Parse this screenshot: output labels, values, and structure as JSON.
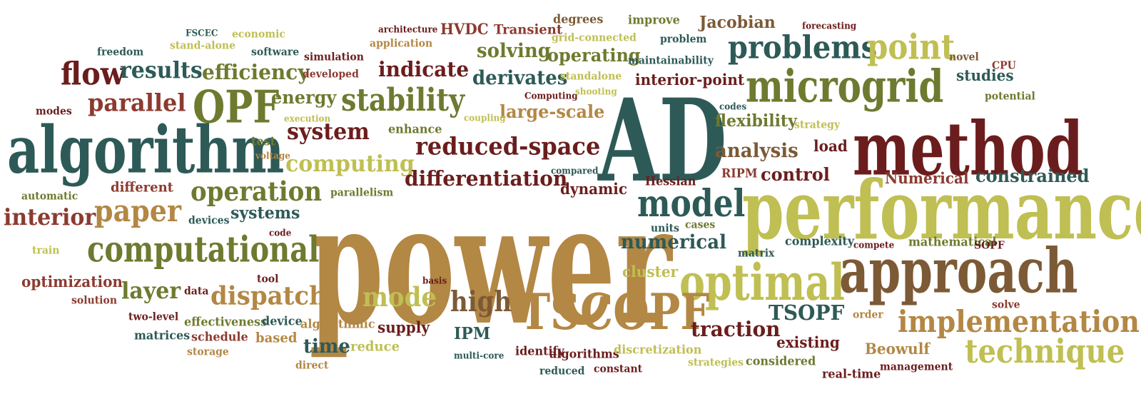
{
  "palette": [
    "#2d5a57",
    "#6b1d1d",
    "#6e7a2f",
    "#b38744",
    "#bfbf53",
    "#7c5a36",
    "#8c3a30"
  ],
  "words": [
    {
      "text": "power",
      "color": "#b38744"
    },
    {
      "text": "performance",
      "color": "#bfbf53"
    },
    {
      "text": "AD",
      "color": "#2d5a57"
    },
    {
      "text": "method",
      "color": "#6b1d1d"
    },
    {
      "text": "algorithm",
      "color": "#2d5a57"
    },
    {
      "text": "approach",
      "color": "#7c5a36"
    },
    {
      "text": "optimal",
      "color": "#bfbf53"
    },
    {
      "text": "TSCOPF",
      "color": "#b38744"
    },
    {
      "text": "microgrid",
      "color": "#6e7a2f"
    },
    {
      "text": "computational",
      "color": "#6e7a2f"
    },
    {
      "text": "technique",
      "color": "#bfbf53"
    },
    {
      "text": "implementation",
      "color": "#b38744"
    },
    {
      "text": "OPF",
      "color": "#6e7a2f"
    },
    {
      "text": "problems",
      "color": "#2d5a57"
    },
    {
      "text": "point",
      "color": "#bfbf53"
    },
    {
      "text": "model",
      "color": "#2d5a57"
    },
    {
      "text": "stability",
      "color": "#6e7a2f"
    },
    {
      "text": "reduced-space",
      "color": "#6b1d1d"
    },
    {
      "text": "flow",
      "color": "#6b1d1d"
    },
    {
      "text": "paper",
      "color": "#b38744"
    },
    {
      "text": "operation",
      "color": "#6e7a2f"
    },
    {
      "text": "high",
      "color": "#7c5a36"
    },
    {
      "text": "mode",
      "color": "#bfbf53"
    },
    {
      "text": "dispatch",
      "color": "#b38744"
    },
    {
      "text": "parallel",
      "color": "#8c3a30"
    },
    {
      "text": "results",
      "color": "#2d5a57"
    },
    {
      "text": "system",
      "color": "#6b1d1d"
    },
    {
      "text": "computing",
      "color": "#bfbf53"
    },
    {
      "text": "differentiation",
      "color": "#6b1d1d"
    },
    {
      "text": "numerical",
      "color": "#2d5a57"
    },
    {
      "text": "efficiency",
      "color": "#6e7a2f"
    },
    {
      "text": "indicate",
      "color": "#6b1d1d"
    },
    {
      "text": "analysis",
      "color": "#7c5a36"
    },
    {
      "text": "large-scale",
      "color": "#b38744"
    },
    {
      "text": "solving",
      "color": "#6e7a2f"
    },
    {
      "text": "derivates",
      "color": "#2d5a57"
    },
    {
      "text": "interior",
      "color": "#8c3a30"
    },
    {
      "text": "layer",
      "color": "#6e7a2f"
    },
    {
      "text": "TSOPF",
      "color": "#2d5a57"
    },
    {
      "text": "traction",
      "color": "#6b1d1d"
    },
    {
      "text": "energy",
      "color": "#6e7a2f"
    },
    {
      "text": "constrained",
      "color": "#2d5a57"
    },
    {
      "text": "flexibility",
      "color": "#6e7a2f"
    },
    {
      "text": "operating",
      "color": "#6e7a2f"
    },
    {
      "text": "control",
      "color": "#6b1d1d"
    },
    {
      "text": "systems",
      "color": "#2d5a57"
    },
    {
      "text": "time",
      "color": "#2d5a57"
    },
    {
      "text": "Numerical",
      "color": "#8c3a30"
    },
    {
      "text": "optimization",
      "color": "#8c3a30"
    },
    {
      "text": "cluster",
      "color": "#bfbf53"
    },
    {
      "text": "interior-point",
      "color": "#6b1d1d"
    },
    {
      "text": "IPM",
      "color": "#2d5a57"
    },
    {
      "text": "Jacobian",
      "color": "#7c5a36"
    },
    {
      "text": "HVDC",
      "color": "#8c3a30"
    },
    {
      "text": "dynamic",
      "color": "#6b1d1d"
    },
    {
      "text": "supply",
      "color": "#6b1d1d"
    },
    {
      "text": "existing",
      "color": "#6b1d1d"
    },
    {
      "text": "Beowulf",
      "color": "#b38744"
    },
    {
      "text": "studies",
      "color": "#2d5a57"
    },
    {
      "text": "different",
      "color": "#8c3a30"
    },
    {
      "text": "Transient",
      "color": "#8c3a30"
    },
    {
      "text": "reduce",
      "color": "#bfbf53"
    },
    {
      "text": "based",
      "color": "#b38744"
    },
    {
      "text": "enhance",
      "color": "#6e7a2f"
    },
    {
      "text": "test",
      "color": "#6e7a2f"
    },
    {
      "text": "load",
      "color": "#6b1d1d"
    },
    {
      "text": "complexity",
      "color": "#2d5a57"
    },
    {
      "text": "mathematical",
      "color": "#6e7a2f"
    },
    {
      "text": "matrices",
      "color": "#2d5a57"
    },
    {
      "text": "schedule",
      "color": "#8c3a30"
    },
    {
      "text": "effectiveness",
      "color": "#6e7a2f"
    },
    {
      "text": "device",
      "color": "#2d5a57"
    },
    {
      "text": "algorithms",
      "color": "#6b1d1d"
    },
    {
      "text": "algorithmic",
      "color": "#b38744"
    },
    {
      "text": "discretization",
      "color": "#bfbf53"
    },
    {
      "text": "identify",
      "color": "#6b1d1d"
    },
    {
      "text": "considered",
      "color": "#6e7a2f"
    },
    {
      "text": "real-time",
      "color": "#6b1d1d"
    },
    {
      "text": "management",
      "color": "#6b1d1d"
    },
    {
      "text": "constant",
      "color": "#6b1d1d"
    },
    {
      "text": "reduced",
      "color": "#2d5a57"
    },
    {
      "text": "strategies",
      "color": "#bfbf53"
    },
    {
      "text": "direct",
      "color": "#b38744"
    },
    {
      "text": "storage",
      "color": "#b38744"
    },
    {
      "text": "two-level",
      "color": "#6b1d1d"
    },
    {
      "text": "solution",
      "color": "#8c3a30"
    },
    {
      "text": "data",
      "color": "#6b1d1d"
    },
    {
      "text": "tool",
      "color": "#6b1d1d"
    },
    {
      "text": "train",
      "color": "#bfbf53"
    },
    {
      "text": "devices",
      "color": "#2d5a57"
    },
    {
      "text": "automatic",
      "color": "#6e7a2f"
    },
    {
      "text": "parallelism",
      "color": "#6e7a2f"
    },
    {
      "text": "modes",
      "color": "#6b1d1d"
    },
    {
      "text": "freedom",
      "color": "#2d5a57"
    },
    {
      "text": "FSCEC",
      "color": "#2d5a57"
    },
    {
      "text": "economic",
      "color": "#bfbf53"
    },
    {
      "text": "stand-alone",
      "color": "#bfbf53"
    },
    {
      "text": "software",
      "color": "#2d5a57"
    },
    {
      "text": "simulation",
      "color": "#6b1d1d"
    },
    {
      "text": "developed",
      "color": "#8c3a30"
    },
    {
      "text": "architecture",
      "color": "#6b1d1d"
    },
    {
      "text": "application",
      "color": "#b38744"
    },
    {
      "text": "degrees",
      "color": "#7c5a36"
    },
    {
      "text": "grid-connected",
      "color": "#bfbf53"
    },
    {
      "text": "improve",
      "color": "#6e7a2f"
    },
    {
      "text": "problem",
      "color": "#2d5a57"
    },
    {
      "text": "maintainability",
      "color": "#2d5a57"
    },
    {
      "text": "standalone",
      "color": "#bfbf53"
    },
    {
      "text": "forecasting",
      "color": "#6b1d1d"
    },
    {
      "text": "novel",
      "color": "#7c5a36"
    },
    {
      "text": "CPU",
      "color": "#8c3a30"
    },
    {
      "text": "potential",
      "color": "#6e7a2f"
    },
    {
      "text": "Computing",
      "color": "#6b1d1d"
    },
    {
      "text": "shooting",
      "color": "#bfbf53"
    },
    {
      "text": "execution",
      "color": "#bfbf53"
    },
    {
      "text": "coupling",
      "color": "#bfbf53"
    },
    {
      "text": "codes",
      "color": "#2d5a57"
    },
    {
      "text": "strategy",
      "color": "#bfbf53"
    },
    {
      "text": "voltage",
      "color": "#b38744"
    },
    {
      "text": "compared",
      "color": "#2d5a57"
    },
    {
      "text": "RIPM",
      "color": "#8c3a30"
    },
    {
      "text": "Hessian",
      "color": "#6b1d1d"
    },
    {
      "text": "units",
      "color": "#2d5a57"
    },
    {
      "text": "cases",
      "color": "#6e7a2f"
    },
    {
      "text": "code",
      "color": "#6b1d1d"
    },
    {
      "text": "matrix",
      "color": "#2d5a57"
    },
    {
      "text": "compete",
      "color": "#6b1d1d"
    },
    {
      "text": "SOPF",
      "color": "#6b1d1d"
    },
    {
      "text": "solve",
      "color": "#8c3a30"
    },
    {
      "text": "order",
      "color": "#b38744"
    },
    {
      "text": "basis",
      "color": "#6b1d1d"
    },
    {
      "text": "multi-core",
      "color": "#2d5a57"
    }
  ]
}
